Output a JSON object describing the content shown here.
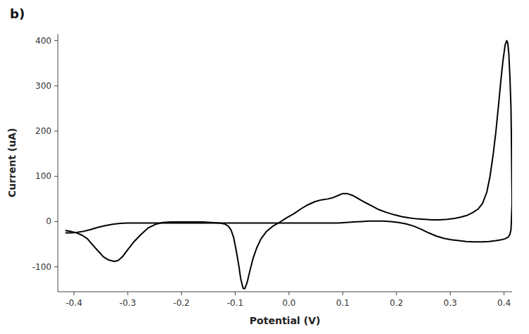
{
  "chart_data": {
    "type": "line",
    "xlabel": "Potential (V)",
    "ylabel": "Current (uA)",
    "annotations": [
      "b)"
    ],
    "xlim": [
      -0.43,
      0.415
    ],
    "ylim": [
      -155,
      415
    ],
    "xticks": [
      -0.4,
      -0.3,
      -0.2,
      -0.1,
      {
        "value": 0.0,
        "label": "0.0"
      },
      0.1,
      0.2,
      0.3,
      0.4
    ],
    "yticks": [
      -100,
      0,
      100,
      200,
      300,
      400
    ],
    "series": [
      {
        "color": "#000000",
        "x": [
          -0.415,
          -0.405,
          -0.395,
          -0.385,
          -0.375,
          -0.365,
          -0.355,
          -0.345,
          -0.335,
          -0.325,
          -0.318,
          -0.31,
          -0.3,
          -0.288,
          -0.275,
          -0.262,
          -0.248,
          -0.235,
          -0.22,
          -0.205,
          -0.19,
          -0.175,
          -0.16,
          -0.145,
          -0.13,
          -0.12,
          -0.113,
          -0.108,
          -0.103,
          -0.098,
          -0.093,
          -0.09,
          -0.087,
          -0.085,
          -0.082,
          -0.078,
          -0.073,
          -0.067,
          -0.06,
          -0.052,
          -0.042,
          -0.03,
          -0.018,
          -0.005,
          0.01,
          0.022,
          0.035,
          0.048,
          0.06,
          0.072,
          0.082,
          0.092,
          0.1,
          0.108,
          0.118,
          0.13,
          0.142,
          0.155,
          0.168,
          0.182,
          0.196,
          0.21,
          0.224,
          0.238,
          0.252,
          0.266,
          0.28,
          0.294,
          0.308,
          0.32,
          0.332,
          0.342,
          0.352,
          0.36,
          0.368,
          0.374,
          0.38,
          0.385,
          0.39,
          0.394,
          0.398,
          0.402,
          0.405,
          0.407,
          0.409,
          0.411,
          0.413,
          0.414,
          0.415
        ],
        "values": [
          -20,
          -22,
          -25,
          -30,
          -38,
          -52,
          -65,
          -78,
          -85,
          -88,
          -86,
          -78,
          -62,
          -44,
          -28,
          -14,
          -6,
          -2,
          -1,
          -1,
          -1,
          -1,
          -1,
          -2,
          -3,
          -5,
          -10,
          -18,
          -35,
          -65,
          -100,
          -125,
          -140,
          -148,
          -148,
          -135,
          -110,
          -82,
          -58,
          -38,
          -22,
          -10,
          -2,
          8,
          18,
          28,
          37,
          44,
          48,
          50,
          53,
          58,
          62,
          62,
          58,
          50,
          42,
          34,
          26,
          20,
          15,
          11,
          8,
          6,
          5,
          4,
          4,
          5,
          7,
          10,
          14,
          20,
          28,
          40,
          65,
          100,
          150,
          200,
          260,
          310,
          355,
          390,
          400,
          395,
          370,
          320,
          250,
          160,
          40
        ]
      },
      {
        "color": "#000000",
        "x": [
          0.415,
          0.414,
          0.413,
          0.411,
          0.408,
          0.402,
          0.395,
          0.385,
          0.372,
          0.358,
          0.344,
          0.33,
          0.316,
          0.302,
          0.288,
          0.274,
          0.26,
          0.246,
          0.232,
          0.218,
          0.204,
          0.19,
          0.176,
          0.162,
          0.148,
          0.134,
          0.12,
          0.106,
          0.092,
          0.078,
          0.064,
          0.05,
          0.036,
          0.022,
          0.008,
          -0.006,
          -0.02,
          -0.034,
          -0.048,
          -0.062,
          -0.076,
          -0.09,
          -0.104,
          -0.118,
          -0.132,
          -0.146,
          -0.16,
          -0.174,
          -0.188,
          -0.202,
          -0.216,
          -0.23,
          -0.244,
          -0.258,
          -0.272,
          -0.286,
          -0.3,
          -0.314,
          -0.328,
          -0.342,
          -0.356,
          -0.37,
          -0.384,
          -0.396,
          -0.408,
          -0.415
        ],
        "values": [
          40,
          10,
          -18,
          -28,
          -34,
          -38,
          -40,
          -42,
          -44,
          -45,
          -45,
          -44,
          -42,
          -40,
          -37,
          -32,
          -25,
          -17,
          -10,
          -5,
          -2,
          0,
          1,
          1,
          1,
          0,
          -1,
          -2,
          -3,
          -3,
          -3,
          -3,
          -3,
          -3,
          -3,
          -3,
          -3,
          -3,
          -3,
          -3,
          -3,
          -3,
          -3,
          -3,
          -3,
          -3,
          -3,
          -3,
          -3,
          -3,
          -3,
          -3,
          -3,
          -3,
          -3,
          -3,
          -3,
          -4,
          -6,
          -9,
          -13,
          -18,
          -22,
          -24,
          -25,
          -25
        ]
      }
    ]
  }
}
